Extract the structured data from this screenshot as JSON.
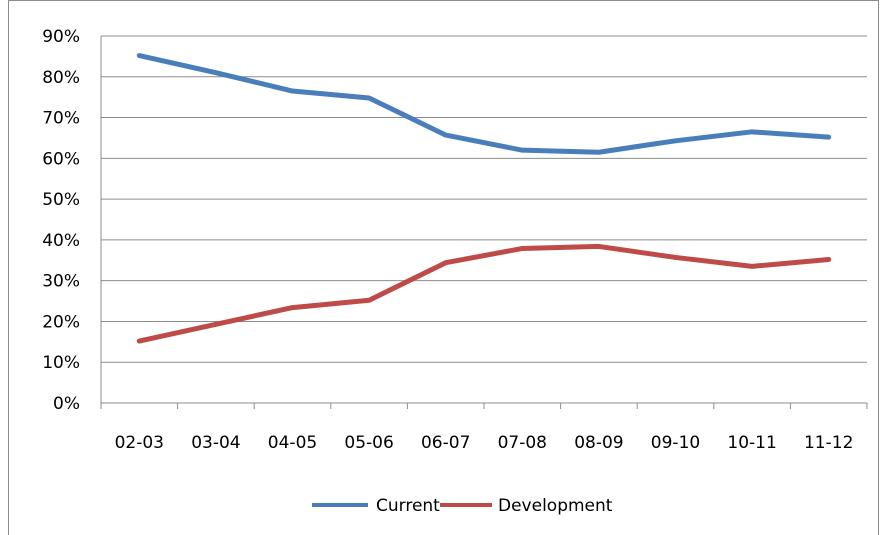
{
  "chart_data": {
    "type": "line",
    "categories": [
      "02-03",
      "03-04",
      "04-05",
      "05-06",
      "06-07",
      "07-08",
      "08-09",
      "09-10",
      "10-11",
      "11-12"
    ],
    "series": [
      {
        "name": "Current",
        "color": "#4a7ebb",
        "values": [
          85.2,
          81.0,
          76.5,
          74.8,
          65.7,
          62.0,
          61.5,
          64.3,
          66.5,
          65.2
        ]
      },
      {
        "name": "Development",
        "color": "#be4b48",
        "values": [
          15.2,
          19.3,
          23.4,
          25.2,
          34.4,
          37.9,
          38.4,
          35.7,
          33.5,
          35.2
        ]
      }
    ],
    "y_ticks": [
      "0%",
      "10%",
      "20%",
      "30%",
      "40%",
      "50%",
      "60%",
      "70%",
      "80%",
      "90%"
    ],
    "ylim": [
      0,
      90
    ],
    "grid": true,
    "legend_position": "bottom"
  }
}
